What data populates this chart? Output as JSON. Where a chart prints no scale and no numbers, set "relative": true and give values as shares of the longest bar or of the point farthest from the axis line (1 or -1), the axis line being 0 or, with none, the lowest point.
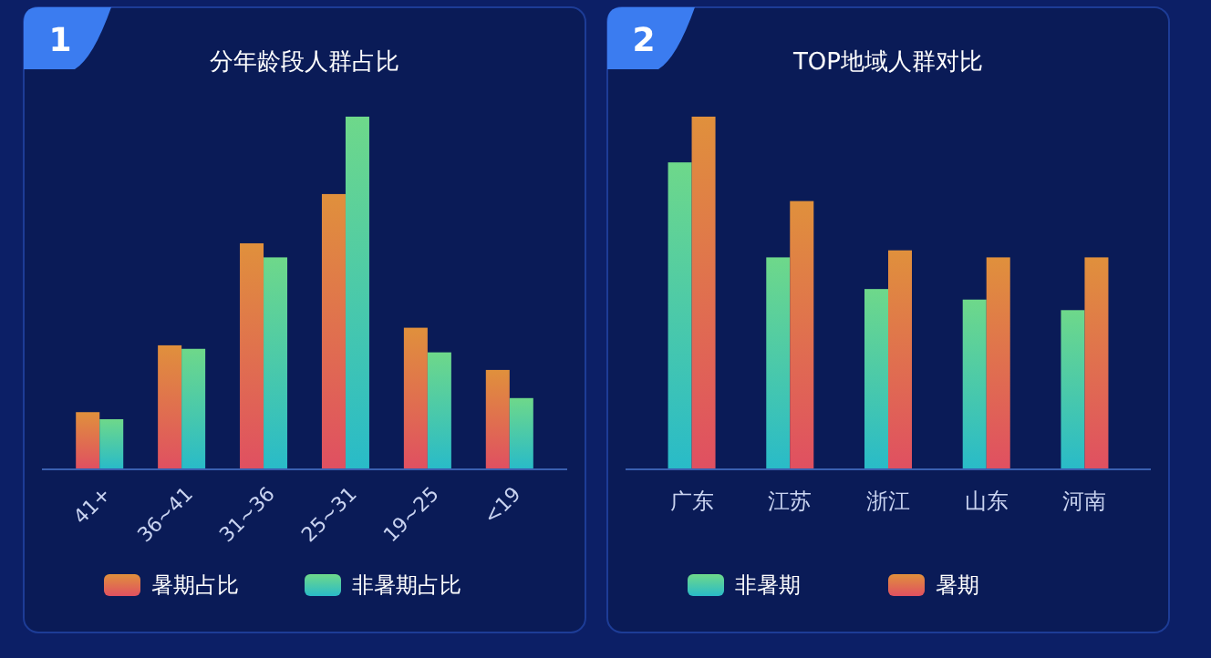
{
  "chart_data": [
    {
      "type": "bar",
      "title": "分年龄段人群占比",
      "annotations": [
        "1"
      ],
      "relative": true,
      "legend": "bottom",
      "categories": [
        "41+",
        "36~41",
        "31~36",
        "25~31",
        "19~25",
        "<19"
      ],
      "series": [
        {
          "name": "暑期占比",
          "color": "#e0903c",
          "values": [
            0.16,
            0.35,
            0.64,
            0.78,
            0.4,
            0.28
          ]
        },
        {
          "name": "非暑期占比",
          "color": "#6ed88a",
          "values": [
            0.14,
            0.34,
            0.6,
            1,
            0.33,
            0.2
          ]
        }
      ]
    },
    {
      "type": "bar",
      "title": "TOP地域人群对比",
      "annotations": [
        "2"
      ],
      "relative": true,
      "legend": "bottom",
      "categories": [
        "广东",
        "江苏",
        "浙江",
        "山东",
        "河南"
      ],
      "series": [
        {
          "name": "非暑期",
          "color": "#6ed88a",
          "values": [
            0.87,
            0.6,
            0.51,
            0.48,
            0.45
          ]
        },
        {
          "name": "暑期",
          "color": "#e0903c",
          "values": [
            1,
            0.76,
            0.62,
            0.6,
            0.6
          ]
        }
      ]
    }
  ]
}
